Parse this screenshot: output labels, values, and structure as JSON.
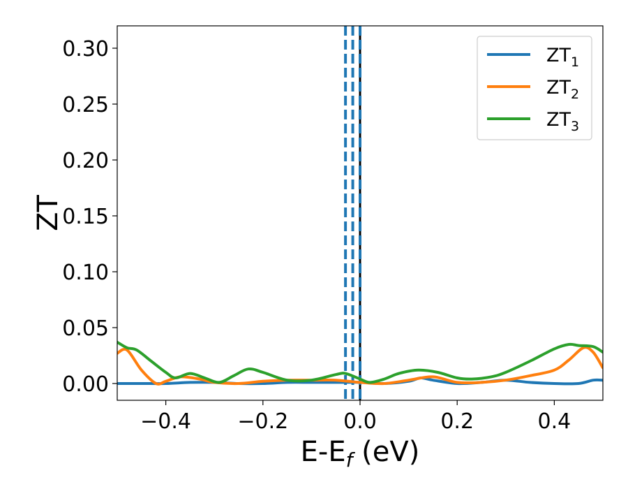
{
  "chart_data": {
    "type": "line",
    "xlabel": {
      "main": "E-E",
      "sub": "f",
      "unit": " (eV)"
    },
    "ylabel": "ZT",
    "xlim": [
      -0.5,
      0.5
    ],
    "ylim": [
      -0.015,
      0.32
    ],
    "xticks": [
      -0.4,
      -0.2,
      0.0,
      0.2,
      0.4
    ],
    "xtick_labels": [
      "−0.4",
      "−0.2",
      "0.0",
      "0.2",
      "0.4"
    ],
    "yticks": [
      0.0,
      0.05,
      0.1,
      0.15,
      0.2,
      0.25,
      0.3
    ],
    "ytick_labels": [
      "0.00",
      "0.05",
      "0.10",
      "0.15",
      "0.20",
      "0.25",
      "0.30"
    ],
    "grid": false,
    "legend": "top-right",
    "vlines": [
      {
        "x": -0.03,
        "style": "dashed",
        "color": "#1f77b4"
      },
      {
        "x": -0.015,
        "style": "dashed",
        "color": "#1f77b4"
      },
      {
        "x": 0.0,
        "style": "solid",
        "color": "#000000"
      },
      {
        "x": 0.0,
        "style": "dashed",
        "color": "#1f77b4"
      }
    ],
    "series": [
      {
        "name": "ZT",
        "sub": "1",
        "color": "#1f77b4",
        "x": [
          -0.5,
          -0.45,
          -0.4,
          -0.35,
          -0.3,
          -0.25,
          -0.2,
          -0.15,
          -0.1,
          -0.05,
          0.0,
          0.05,
          0.1,
          0.125,
          0.15,
          0.2,
          0.25,
          0.3,
          0.35,
          0.4,
          0.45,
          0.48,
          0.5
        ],
        "y": [
          0.0,
          0.0,
          0.0,
          0.001,
          0.001,
          0.0,
          0.0,
          0.001,
          0.001,
          0.001,
          0.001,
          0.0,
          0.002,
          0.005,
          0.003,
          0.0,
          0.001,
          0.003,
          0.001,
          0.0,
          0.0,
          0.003,
          0.003
        ]
      },
      {
        "name": "ZT",
        "sub": "2",
        "color": "#ff7f0e",
        "x": [
          -0.5,
          -0.48,
          -0.45,
          -0.42,
          -0.4,
          -0.37,
          -0.33,
          -0.3,
          -0.25,
          -0.2,
          -0.15,
          -0.1,
          -0.05,
          0.0,
          0.05,
          0.1,
          0.15,
          0.2,
          0.25,
          0.3,
          0.35,
          0.4,
          0.43,
          0.46,
          0.48,
          0.5
        ],
        "y": [
          0.027,
          0.03,
          0.012,
          0.0,
          0.002,
          0.006,
          0.004,
          0.001,
          0.0,
          0.002,
          0.003,
          0.003,
          0.003,
          0.001,
          0.0,
          0.003,
          0.006,
          0.001,
          0.001,
          0.003,
          0.007,
          0.012,
          0.021,
          0.032,
          0.028,
          0.014
        ]
      },
      {
        "name": "ZT",
        "sub": "3",
        "color": "#2ca02c",
        "x": [
          -0.5,
          -0.48,
          -0.46,
          -0.43,
          -0.4,
          -0.38,
          -0.35,
          -0.32,
          -0.29,
          -0.26,
          -0.23,
          -0.2,
          -0.15,
          -0.1,
          -0.05,
          -0.03,
          0.0,
          0.02,
          0.05,
          0.08,
          0.12,
          0.16,
          0.2,
          0.23,
          0.27,
          0.3,
          0.35,
          0.4,
          0.43,
          0.45,
          0.48,
          0.5
        ],
        "y": [
          0.037,
          0.032,
          0.03,
          0.02,
          0.01,
          0.005,
          0.009,
          0.005,
          0.001,
          0.007,
          0.013,
          0.01,
          0.003,
          0.003,
          0.008,
          0.009,
          0.004,
          0.001,
          0.004,
          0.009,
          0.012,
          0.01,
          0.005,
          0.004,
          0.006,
          0.01,
          0.02,
          0.031,
          0.035,
          0.034,
          0.033,
          0.028
        ]
      }
    ]
  }
}
